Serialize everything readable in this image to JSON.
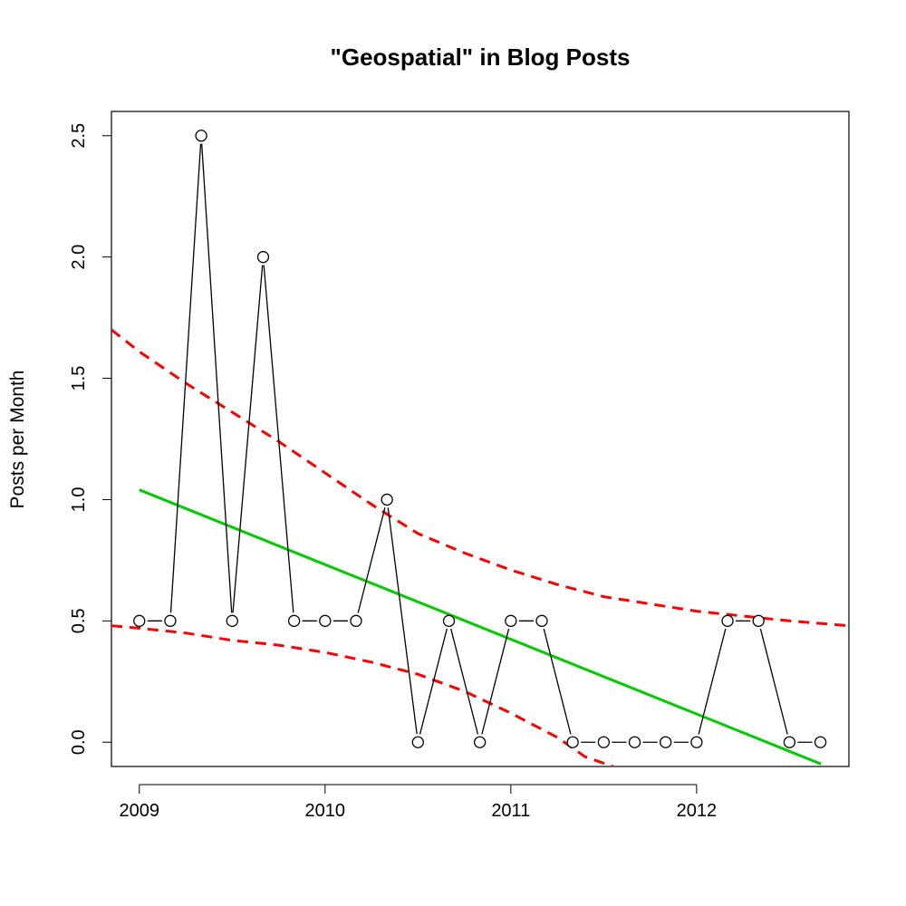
{
  "chart_data": {
    "type": "line",
    "title": "\"Geospatial\" in Blog Posts",
    "xlabel": "",
    "ylabel": "Posts per Month",
    "x_ticks": [
      "2009",
      "2010",
      "2011",
      "2012"
    ],
    "y_ticks": [
      "0.0",
      "0.5",
      "1.0",
      "1.5",
      "2.0",
      "2.5"
    ],
    "xlim": [
      2008.85,
      2012.82
    ],
    "ylim": [
      -0.1,
      2.6
    ],
    "grid": false,
    "legend": "none",
    "series": [
      {
        "style": "points-and-lines",
        "color": "#000000",
        "x": [
          2009.0,
          2009.1667,
          2009.3333,
          2009.5,
          2009.6667,
          2009.8333,
          2010.0,
          2010.1667,
          2010.3333,
          2010.5,
          2010.6667,
          2010.8333,
          2011.0,
          2011.1667,
          2011.3333,
          2011.5,
          2011.6667,
          2011.8333,
          2012.0,
          2012.1667,
          2012.3333,
          2012.5,
          2012.6667
        ],
        "values": [
          0.5,
          0.5,
          2.5,
          0.5,
          2.0,
          0.5,
          0.5,
          0.5,
          1.0,
          0.0,
          0.5,
          0.0,
          0.5,
          0.5,
          0.0,
          0.0,
          0.0,
          0.0,
          0.0,
          0.5,
          0.5,
          0.0,
          0.0
        ]
      },
      {
        "style": "fit-line",
        "color": "#00cc00",
        "x": [
          2009.0,
          2012.67
        ],
        "values": [
          1.04,
          -0.09
        ]
      },
      {
        "style": "dashed-band-upper",
        "color": "#ff0000",
        "x": [
          2008.85,
          2009.0,
          2009.25,
          2009.5,
          2009.75,
          2010.0,
          2010.25,
          2010.5,
          2010.75,
          2011.0,
          2011.25,
          2011.5,
          2011.75,
          2012.0,
          2012.25,
          2012.5,
          2012.82
        ],
        "values": [
          1.7,
          1.61,
          1.48,
          1.36,
          1.24,
          1.11,
          0.98,
          0.86,
          0.78,
          0.71,
          0.65,
          0.6,
          0.57,
          0.54,
          0.52,
          0.5,
          0.48
        ]
      },
      {
        "style": "dashed-band-lower",
        "color": "#ff0000",
        "x": [
          2008.85,
          2009.0,
          2009.25,
          2009.5,
          2009.75,
          2010.0,
          2010.25,
          2010.5,
          2010.75,
          2011.0,
          2011.25,
          2011.4,
          2011.55
        ],
        "values": [
          0.48,
          0.47,
          0.45,
          0.42,
          0.4,
          0.37,
          0.33,
          0.28,
          0.21,
          0.12,
          0.02,
          -0.06,
          -0.1
        ]
      }
    ]
  }
}
